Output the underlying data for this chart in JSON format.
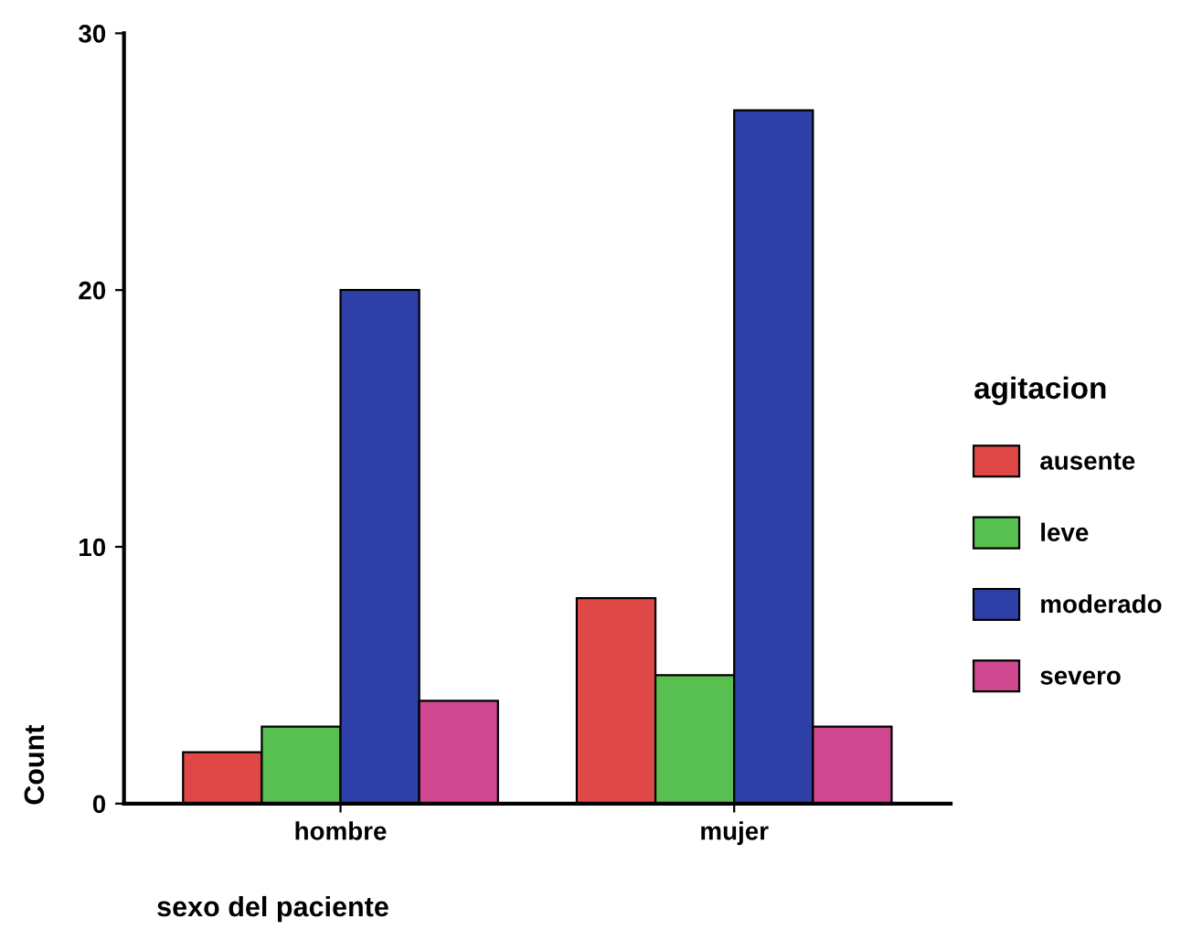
{
  "chart_data": {
    "type": "bar",
    "xlabel": "sexo del paciente",
    "ylabel": "Count",
    "legend_title": "agitacion",
    "categories": [
      "hombre",
      "mujer"
    ],
    "series": [
      {
        "name": "ausente",
        "color": "#e04848",
        "values": [
          2,
          8
        ]
      },
      {
        "name": "leve",
        "color": "#58c050",
        "values": [
          3,
          5
        ]
      },
      {
        "name": "moderado",
        "color": "#2f3fa8",
        "values": [
          20,
          27
        ]
      },
      {
        "name": "severo",
        "color": "#d04890",
        "values": [
          4,
          3
        ]
      }
    ],
    "ylim": [
      0,
      30
    ],
    "yticks": [
      0,
      10,
      20,
      30
    ],
    "grid": false,
    "legend": "right"
  }
}
